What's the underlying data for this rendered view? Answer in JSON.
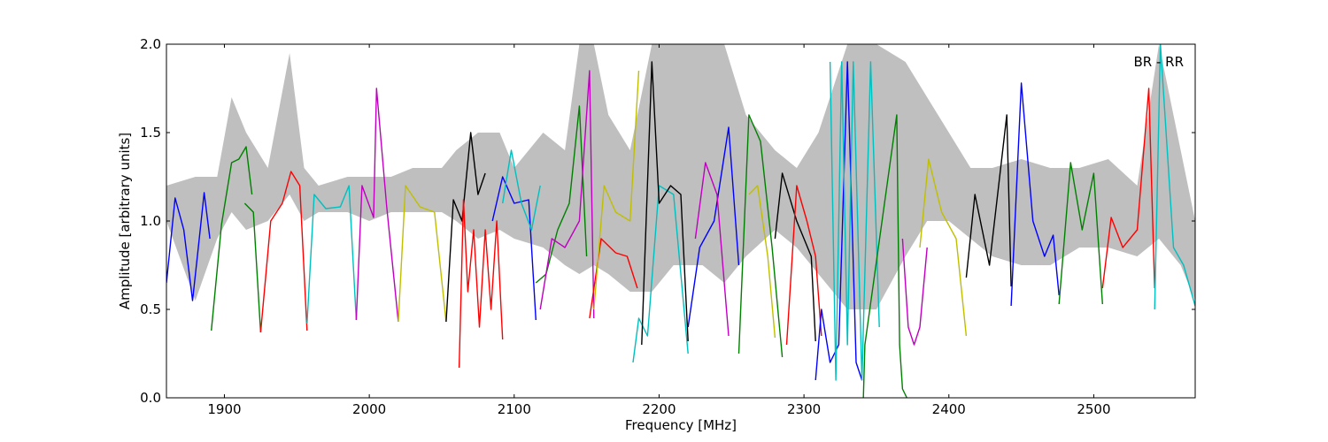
{
  "chart_data": {
    "type": "line",
    "title": "",
    "annotation": "BR - RR",
    "xlabel": "Frequency [MHz]",
    "ylabel": "Amplitude [arbitrary units]",
    "xlim": [
      1860,
      2570
    ],
    "ylim": [
      0.0,
      2.0
    ],
    "x_ticks": [
      1900,
      2000,
      2100,
      2200,
      2300,
      2400,
      2500
    ],
    "y_ticks": [
      0.0,
      0.5,
      1.0,
      1.5,
      2.0
    ],
    "y_tick_labels": [
      "0.0",
      "0.5",
      "1.0",
      "1.5",
      "2.0"
    ],
    "grid": false,
    "legend": "none",
    "envelope": {
      "color": "#bfbfbf",
      "x": [
        1860,
        1880,
        1895,
        1905,
        1915,
        1930,
        1945,
        1955,
        1965,
        1985,
        2000,
        2015,
        2030,
        2050,
        2060,
        2075,
        2090,
        2100,
        2120,
        2135,
        2145,
        2155,
        2165,
        2180,
        2195,
        2210,
        2230,
        2245,
        2260,
        2280,
        2295,
        2310,
        2330,
        2350,
        2370,
        2385,
        2400,
        2415,
        2430,
        2450,
        2470,
        2490,
        2510,
        2530,
        2545,
        2560,
        2570
      ],
      "top": [
        1.2,
        1.25,
        1.25,
        1.7,
        1.5,
        1.3,
        1.95,
        1.3,
        1.2,
        1.25,
        1.25,
        1.25,
        1.3,
        1.3,
        1.4,
        1.5,
        1.5,
        1.3,
        1.5,
        1.4,
        2.0,
        2.0,
        1.6,
        1.4,
        2.0,
        2.0,
        2.0,
        2.0,
        1.6,
        1.4,
        1.3,
        1.5,
        2.0,
        2.0,
        1.9,
        1.7,
        1.5,
        1.3,
        1.3,
        1.35,
        1.3,
        1.3,
        1.35,
        1.2,
        2.0,
        1.4,
        1.0
      ],
      "bottom": [
        1.0,
        0.55,
        0.9,
        1.05,
        0.95,
        1.0,
        1.15,
        1.0,
        1.05,
        1.05,
        1.0,
        1.05,
        1.05,
        1.05,
        1.0,
        0.9,
        0.95,
        0.9,
        0.85,
        0.75,
        0.7,
        0.75,
        0.7,
        0.6,
        0.6,
        0.75,
        0.75,
        0.65,
        0.8,
        0.95,
        0.85,
        0.7,
        0.5,
        0.5,
        0.8,
        1.0,
        1.0,
        0.9,
        0.8,
        0.75,
        0.75,
        0.85,
        0.85,
        0.8,
        0.9,
        0.75,
        0.55
      ]
    },
    "series": [
      {
        "color": "#0000ff",
        "x": [
          1860,
          1866,
          1872,
          1878,
          1882,
          1886,
          1890
        ],
        "y": [
          0.65,
          1.13,
          0.95,
          0.55,
          0.85,
          1.16,
          0.9
        ]
      },
      {
        "color": "#008000",
        "x": [
          1891,
          1898,
          1905,
          1910,
          1915,
          1919
        ],
        "y": [
          0.38,
          0.98,
          1.33,
          1.35,
          1.42,
          1.15
        ]
      },
      {
        "color": "#008000",
        "x": [
          1914,
          1920,
          1925
        ],
        "y": [
          1.1,
          1.05,
          0.37
        ]
      },
      {
        "color": "#ff0000",
        "x": [
          1925,
          1932,
          1940,
          1946,
          1952,
          1957
        ],
        "y": [
          0.37,
          1.0,
          1.1,
          1.28,
          1.2,
          0.38
        ]
      },
      {
        "color": "#00bfbf",
        "x": [
          1957,
          1962,
          1970,
          1980,
          1986,
          1991
        ],
        "y": [
          0.42,
          1.15,
          1.07,
          1.08,
          1.2,
          0.44
        ]
      },
      {
        "color": "#bf00bf",
        "x": [
          1991,
          1995,
          2003,
          2005,
          2012,
          2020
        ],
        "y": [
          0.44,
          1.2,
          1.02,
          1.75,
          1.08,
          0.43
        ]
      },
      {
        "color": "#bfbf00",
        "x": [
          2020,
          2025,
          2035,
          2045,
          2053
        ],
        "y": [
          0.43,
          1.2,
          1.08,
          1.05,
          0.43
        ]
      },
      {
        "color": "#000000",
        "x": [
          2053,
          2058,
          2064,
          2070,
          2075,
          2080
        ],
        "y": [
          0.43,
          1.12,
          1.0,
          1.5,
          1.15,
          1.27
        ]
      },
      {
        "color": "#ff0000",
        "x": [
          2062,
          2065,
          2068,
          2072,
          2076,
          2080,
          2084,
          2088,
          2092
        ],
        "y": [
          0.17,
          1.12,
          0.6,
          0.95,
          0.4,
          0.95,
          0.5,
          1.0,
          0.33
        ]
      },
      {
        "color": "#0000ff",
        "x": [
          2085,
          2092,
          2100,
          2110,
          2115
        ],
        "y": [
          1.0,
          1.25,
          1.1,
          1.12,
          0.44
        ]
      },
      {
        "color": "#00bfbf",
        "x": [
          2092,
          2098,
          2105,
          2112,
          2118
        ],
        "y": [
          1.1,
          1.4,
          1.1,
          0.95,
          1.2
        ]
      },
      {
        "color": "#008000",
        "x": [
          2115,
          2122,
          2130,
          2138,
          2145,
          2150
        ],
        "y": [
          0.65,
          0.7,
          0.95,
          1.1,
          1.65,
          0.8
        ]
      },
      {
        "color": "#bf00bf",
        "x": [
          2118,
          2126,
          2135,
          2145,
          2152,
          2155
        ],
        "y": [
          0.5,
          0.9,
          0.85,
          1.0,
          1.85,
          0.45
        ]
      },
      {
        "color": "#ff0000",
        "x": [
          2152,
          2160,
          2170,
          2178,
          2185
        ],
        "y": [
          0.45,
          0.9,
          0.82,
          0.8,
          0.62
        ]
      },
      {
        "color": "#bfbf00",
        "x": [
          2155,
          2162,
          2170,
          2180,
          2186
        ],
        "y": [
          0.5,
          1.2,
          1.05,
          1.0,
          1.85
        ]
      },
      {
        "color": "#00bfbf",
        "x": [
          2182,
          2186,
          2192,
          2200,
          2210,
          2220
        ],
        "y": [
          0.2,
          0.45,
          0.35,
          1.2,
          1.15,
          0.25
        ]
      },
      {
        "color": "#000000",
        "x": [
          2188,
          2195,
          2200,
          2208,
          2215,
          2220
        ],
        "y": [
          0.3,
          1.9,
          1.1,
          1.2,
          1.15,
          0.32
        ]
      },
      {
        "color": "#0000ff",
        "x": [
          2220,
          2228,
          2238,
          2248,
          2255
        ],
        "y": [
          0.4,
          0.85,
          1.0,
          1.53,
          0.75
        ]
      },
      {
        "color": "#bf00bf",
        "x": [
          2225,
          2232,
          2240,
          2248
        ],
        "y": [
          0.9,
          1.33,
          1.15,
          0.35
        ]
      },
      {
        "color": "#008000",
        "x": [
          2255,
          2262,
          2270,
          2278,
          2285
        ],
        "y": [
          0.25,
          1.6,
          1.45,
          0.85,
          0.23
        ]
      },
      {
        "color": "#bfbf00",
        "x": [
          2262,
          2268,
          2275,
          2280
        ],
        "y": [
          1.15,
          1.2,
          0.8,
          0.34
        ]
      },
      {
        "color": "#000000",
        "x": [
          2280,
          2285,
          2295,
          2305,
          2308
        ],
        "y": [
          0.9,
          1.27,
          1.0,
          0.8,
          0.32
        ]
      },
      {
        "color": "#ff0000",
        "x": [
          2288,
          2295,
          2302,
          2308,
          2312
        ],
        "y": [
          0.3,
          1.2,
          1.0,
          0.8,
          0.35
        ]
      },
      {
        "color": "#0000ff",
        "x": [
          2308,
          2312,
          2318,
          2324,
          2330,
          2336,
          2340
        ],
        "y": [
          0.1,
          0.5,
          0.2,
          0.3,
          1.9,
          0.2,
          0.1
        ]
      },
      {
        "color": "#00bfbf",
        "x": [
          2318,
          2322,
          2326,
          2330,
          2334,
          2340,
          2346,
          2352
        ],
        "y": [
          1.9,
          0.1,
          1.9,
          0.3,
          1.9,
          0.1,
          1.9,
          0.4
        ]
      },
      {
        "color": "#008000",
        "x": [
          2341,
          2342,
          2364,
          2366,
          2368,
          2371
        ],
        "y": [
          0.0,
          0.3,
          1.6,
          0.3,
          0.05,
          0.0
        ]
      },
      {
        "color": "#bf00bf",
        "x": [
          2368,
          2372,
          2376,
          2380,
          2385
        ],
        "y": [
          0.9,
          0.4,
          0.3,
          0.4,
          0.85
        ]
      },
      {
        "color": "#bfbf00",
        "x": [
          2380,
          2386,
          2395,
          2405,
          2412
        ],
        "y": [
          0.85,
          1.35,
          1.05,
          0.9,
          0.35
        ]
      },
      {
        "color": "#000000",
        "x": [
          2412,
          2418,
          2428,
          2440,
          2443
        ],
        "y": [
          0.68,
          1.15,
          0.75,
          1.6,
          0.63
        ]
      },
      {
        "color": "#0000ff",
        "x": [
          2443,
          2450,
          2458,
          2466,
          2472,
          2476
        ],
        "y": [
          0.52,
          1.78,
          1.0,
          0.8,
          0.92,
          0.58
        ]
      },
      {
        "color": "#008000",
        "x": [
          2476,
          2484,
          2492,
          2500,
          2506
        ],
        "y": [
          0.53,
          1.33,
          0.95,
          1.27,
          0.53
        ]
      },
      {
        "color": "#ff0000",
        "x": [
          2506,
          2512,
          2520,
          2530,
          2538,
          2542
        ],
        "y": [
          0.62,
          1.02,
          0.85,
          0.95,
          1.75,
          0.62
        ]
      },
      {
        "color": "#00bfbf",
        "x": [
          2542,
          2546,
          2555,
          2562,
          2570
        ],
        "y": [
          0.5,
          2.0,
          0.85,
          0.75,
          0.52
        ]
      }
    ]
  }
}
